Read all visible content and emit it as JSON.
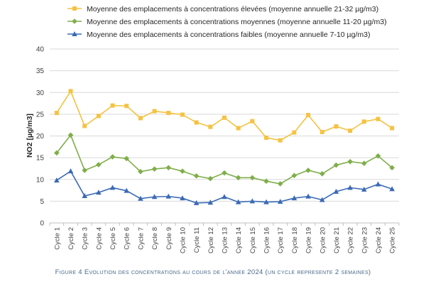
{
  "chart_data": {
    "type": "line",
    "title": "",
    "xlabel": "",
    "ylabel": "NO2 [µg/m3]",
    "ylim": [
      0,
      40
    ],
    "yticks": [
      0,
      5,
      10,
      15,
      20,
      25,
      30,
      35,
      40
    ],
    "grid": "horizontal",
    "legend_position": "top",
    "categories": [
      "Cycle 1",
      "Cycle 2",
      "Cycle 3",
      "Cycle 4",
      "Cycle 5",
      "Cycle 6",
      "Cycle 7",
      "Cycle 8",
      "Cycle 9",
      "Cycle 10",
      "Cycle 11",
      "Cycle 12",
      "Cycle 13",
      "Cycle 14",
      "Cycle 15",
      "Cycle 16",
      "Cycle 17",
      "Cycle 18",
      "Cycle 19",
      "Cycle 20",
      "Cycle 21",
      "Cycle 22",
      "Cycle 23",
      "Cycle 24",
      "Cycle 25"
    ],
    "series": [
      {
        "name": "Moyenne des emplacements à concentrations élevées (moyenne annuelle 21-32 µg/m3)",
        "color": "#f5c242",
        "marker": "square",
        "values": [
          25.3,
          30.3,
          22.3,
          24.6,
          27.0,
          26.9,
          24.1,
          25.7,
          25.3,
          24.9,
          23.1,
          22.1,
          24.2,
          21.8,
          23.4,
          19.6,
          19.0,
          20.8,
          24.8,
          20.9,
          22.2,
          21.2,
          23.3,
          23.9,
          21.8
        ]
      },
      {
        "name": "Moyenne des emplacements à concentrations moyennes (moyenne annuelle 11-20 µg/m3)",
        "color": "#7fae4a",
        "marker": "diamond",
        "values": [
          16.1,
          20.2,
          12.1,
          13.4,
          15.2,
          14.8,
          11.8,
          12.4,
          12.7,
          11.9,
          10.8,
          10.2,
          11.5,
          10.4,
          10.4,
          9.6,
          9.0,
          10.9,
          12.1,
          11.3,
          13.3,
          14.1,
          13.7,
          15.4,
          12.7
        ]
      },
      {
        "name": "Moyenne des emplacements à concentrations faibles (moyenne annuelle 7-10 µg/m3)",
        "color": "#3b6ab5",
        "marker": "triangle",
        "values": [
          9.8,
          11.9,
          6.2,
          7.0,
          8.1,
          7.4,
          5.6,
          6.0,
          6.1,
          5.7,
          4.6,
          4.7,
          6.0,
          4.8,
          5.0,
          4.8,
          4.9,
          5.7,
          6.1,
          5.3,
          7.2,
          8.1,
          7.7,
          8.9,
          7.8
        ]
      }
    ]
  },
  "caption": "Figure 4 Evolution des concentrations au cours de l'annee 2024 (un cycle represente 2 semaines)"
}
